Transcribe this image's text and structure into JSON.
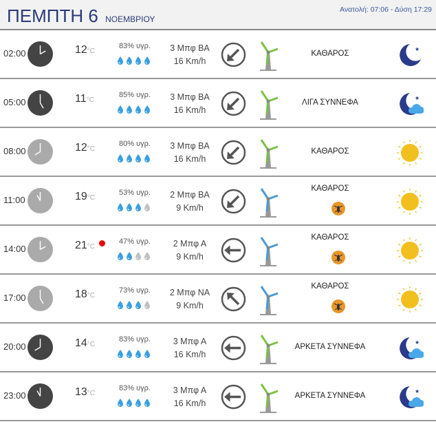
{
  "header": {
    "day": "ΠΕΜΠΤΗ 6",
    "month": "ΝΟΕΜΒΡΙΟΥ",
    "sun": "Ανατολή: 07:06  - Δύση 17:29"
  },
  "unit": "°C",
  "colors": {
    "title": "#2b3a7a",
    "drop": "#3aa0e0",
    "drop_empty": "#c0c0c0",
    "green": "#7cc242",
    "blue": "#4a9ad4",
    "sun": "#f2c01e",
    "moon": "#2b3a8a"
  },
  "rows": [
    {
      "time": "02:00",
      "night": true,
      "temp": "12",
      "hum": "83% υγρ.",
      "drops": 4,
      "wind": "3 Μπφ ΒΑ",
      "speed": "16 Km/h",
      "dir": "ΒΑ",
      "cond": "ΚΑΘΑΡΟΣ",
      "icon": "moon-icon",
      "bug": false,
      "alert": false
    },
    {
      "time": "05:00",
      "night": true,
      "temp": "11",
      "hum": "85% υγρ.",
      "drops": 4,
      "wind": "3 Μπφ ΒΑ",
      "speed": "16 Km/h",
      "dir": "ΒΑ",
      "cond": "ΛΙΓΑ ΣΥΝΝΕΦΑ",
      "icon": "moon-cloud-icon",
      "bug": false,
      "alert": false
    },
    {
      "time": "08:00",
      "night": false,
      "temp": "12",
      "hum": "80% υγρ.",
      "drops": 4,
      "wind": "3 Μπφ ΒΑ",
      "speed": "16 Km/h",
      "dir": "ΒΑ",
      "cond": "ΚΑΘΑΡΟΣ",
      "icon": "sun-icon",
      "bug": false,
      "alert": false
    },
    {
      "time": "11:00",
      "night": false,
      "temp": "19",
      "hum": "53% υγρ.",
      "drops": 3,
      "wind": "2 Μπφ ΒΑ",
      "speed": "9 Km/h",
      "dir": "ΒΑ",
      "cond": "ΚΑΘΑΡΟΣ",
      "icon": "sun-icon",
      "bug": true,
      "alert": false
    },
    {
      "time": "14:00",
      "night": false,
      "temp": "21",
      "hum": "47% υγρ.",
      "drops": 2,
      "wind": "2 Μπφ Α",
      "speed": "9 Km/h",
      "dir": "Α",
      "cond": "ΚΑΘΑΡΟΣ",
      "icon": "sun-icon",
      "bug": true,
      "alert": true
    },
    {
      "time": "17:00",
      "night": false,
      "temp": "18",
      "hum": "73% υγρ.",
      "drops": 3,
      "wind": "2 Μπφ ΝΑ",
      "speed": "9 Km/h",
      "dir": "ΝΑ",
      "cond": "ΚΑΘΑΡΟΣ",
      "icon": "sun-icon",
      "bug": true,
      "alert": false
    },
    {
      "time": "20:00",
      "night": true,
      "temp": "14",
      "hum": "83% υγρ.",
      "drops": 4,
      "wind": "3 Μπφ Α",
      "speed": "16 Km/h",
      "dir": "Α",
      "cond": "ΑΡΚΕΤΑ ΣΥΝΝΕΦΑ",
      "icon": "moon-cloud-icon",
      "bug": false,
      "alert": false
    },
    {
      "time": "23:00",
      "night": true,
      "temp": "13",
      "hum": "83% υγρ.",
      "drops": 4,
      "wind": "3 Μπφ Α",
      "speed": "16 Km/h",
      "dir": "Α",
      "cond": "ΑΡΚΕΤΑ ΣΥΝΝΕΦΑ",
      "icon": "moon-cloud-icon",
      "bug": false,
      "alert": false
    }
  ]
}
